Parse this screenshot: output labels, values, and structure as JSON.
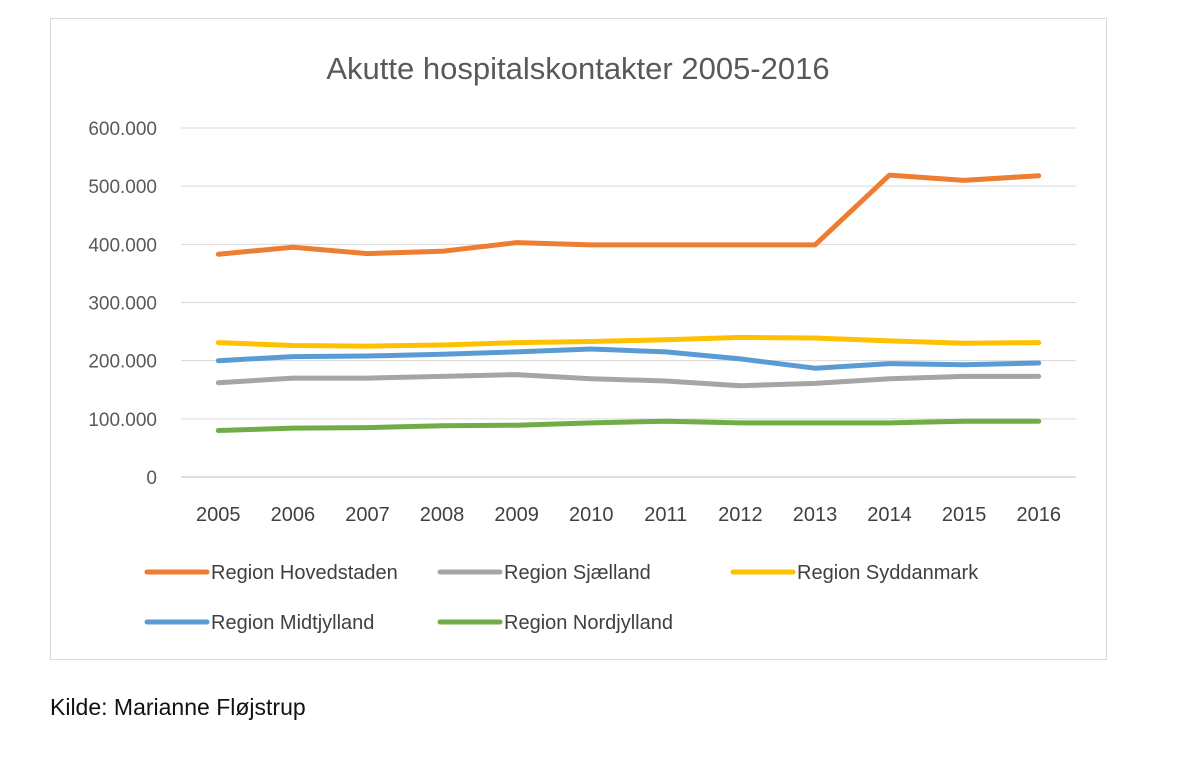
{
  "source_caption": "Kilde: Marianne Fløjstrup",
  "chart_data": {
    "type": "line",
    "title": "Akutte hospitalskontakter 2005-2016",
    "xlabel": "",
    "ylabel": "",
    "categories": [
      "2005",
      "2006",
      "2007",
      "2008",
      "2009",
      "2010",
      "2011",
      "2012",
      "2013",
      "2014",
      "2015",
      "2016"
    ],
    "ylim": [
      0,
      600000
    ],
    "y_ticks": [
      0,
      100000,
      200000,
      300000,
      400000,
      500000,
      600000
    ],
    "y_tick_labels": [
      "0",
      "100.000",
      "200.000",
      "300.000",
      "400.000",
      "500.000",
      "600.000"
    ],
    "grid": true,
    "legend_position": "bottom",
    "series": [
      {
        "name": "Region Hovedstaden",
        "color": "#ed7d31",
        "values": [
          383000,
          395000,
          384000,
          388000,
          403000,
          399000,
          399000,
          399000,
          399000,
          519000,
          510000,
          518000
        ]
      },
      {
        "name": "Region Sjælland",
        "color": "#a5a5a5",
        "values": [
          162000,
          170000,
          170000,
          173000,
          176000,
          169000,
          165000,
          157000,
          161000,
          169000,
          173000,
          173000
        ]
      },
      {
        "name": "Region Syddanmark",
        "color": "#ffc000",
        "values": [
          231000,
          226000,
          225000,
          227000,
          231000,
          233000,
          236000,
          240000,
          239000,
          234000,
          230000,
          231000
        ]
      },
      {
        "name": "Region Midtjylland",
        "color": "#5b9bd5",
        "values": [
          200000,
          207000,
          208000,
          211000,
          215000,
          220000,
          215000,
          203000,
          187000,
          195000,
          193000,
          196000
        ]
      },
      {
        "name": "Region Nordjylland",
        "color": "#70ad47",
        "values": [
          80000,
          84000,
          85000,
          88000,
          89000,
          93000,
          96000,
          93000,
          93000,
          93000,
          96000,
          96000
        ]
      }
    ]
  }
}
